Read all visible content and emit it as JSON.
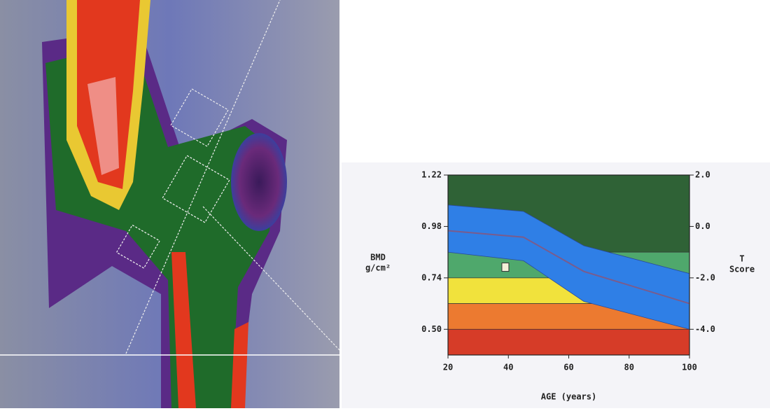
{
  "chart_data": {
    "type": "bmd-reference",
    "xlabel": "AGE (years)",
    "ylabel": [
      "BMD",
      "g/cm²"
    ],
    "y2label": [
      "T",
      "Score"
    ],
    "xlim": [
      20,
      100
    ],
    "xticks": [
      20,
      40,
      60,
      80,
      100
    ],
    "ylim": [
      0.38,
      1.22
    ],
    "yticks": [
      {
        "value": 0.5,
        "label": "0.50"
      },
      0.74,
      0.98,
      1.22
    ],
    "y2lim": [
      -5.0,
      2.0
    ],
    "y2ticks": [
      {
        "value": -4,
        "label": "-4.0"
      },
      {
        "value": -2,
        "label": "-2.0"
      },
      {
        "value": 0,
        "label": "0.0"
      },
      {
        "value": 2,
        "label": "2.0"
      }
    ],
    "zones": [
      {
        "from": 0.86,
        "to": 1.22,
        "color": "#2f6236"
      },
      {
        "from": 0.74,
        "to": 0.86,
        "color": "#4fa86c"
      },
      {
        "from": 0.62,
        "to": 0.74,
        "color": "#f1e23c"
      },
      {
        "from": 0.5,
        "to": 0.62,
        "color": "#ec7a30"
      },
      {
        "from": 0.38,
        "to": 0.5,
        "color": "#d63c28"
      }
    ],
    "x": [
      20,
      45,
      65,
      100
    ],
    "band_color": "#2f7fe6",
    "series": [
      {
        "values": [
          1.08,
          1.05,
          0.89,
          0.76
        ]
      },
      {
        "values": [
          0.86,
          0.82,
          0.63,
          0.5
        ]
      },
      {
        "values": [
          0.96,
          0.93,
          0.77,
          0.62
        ],
        "color": "#7a5c8c"
      }
    ],
    "patient": {
      "x": 39,
      "y": 0.79,
      "color": "#f4f0d8"
    }
  }
}
